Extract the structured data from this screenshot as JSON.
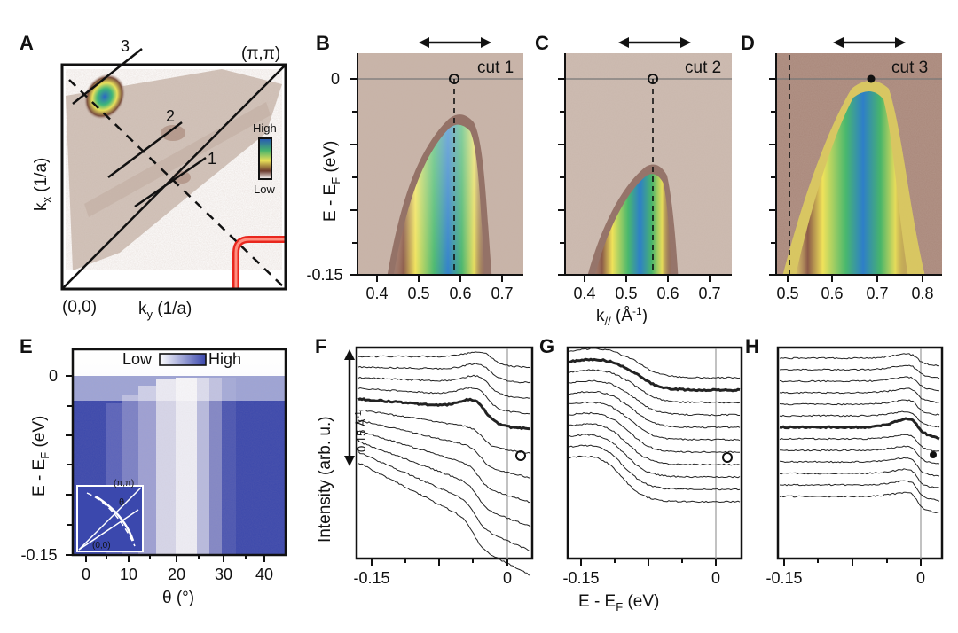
{
  "panels": {
    "A": {
      "letter": "A",
      "corner_top": "(π,π)",
      "corner_bottom": "(0,0)",
      "xlabel": "k",
      "xlabel_sub": "y",
      "xlabel_unit": " (1/a)",
      "ylabel": "k",
      "ylabel_sub": "x",
      "ylabel_unit": " (1/a)",
      "cut_labels": [
        "3",
        "2",
        "1"
      ],
      "colorbar_high": "High",
      "colorbar_low": "Low",
      "colors": {
        "fs_red": "#e8271e",
        "map_base": "#cdbdb3"
      }
    },
    "B": {
      "letter": "B",
      "cut": "cut 1",
      "xticks": [
        "0.4",
        "0.5",
        "0.6",
        "0.7"
      ],
      "marker": "open-circle"
    },
    "C": {
      "letter": "C",
      "cut": "cut 2",
      "xticks": [
        "0.4",
        "0.5",
        "0.6",
        "0.7"
      ],
      "marker": "open-circle"
    },
    "D": {
      "letter": "D",
      "cut": "cut 3",
      "xticks": [
        "0.5",
        "0.6",
        "0.7",
        "0.8"
      ],
      "marker": "filled-circle"
    },
    "BCD_shared": {
      "yticks": [
        "0",
        "-0.15"
      ],
      "ylabel_main": "E - E",
      "ylabel_sub": "F",
      "ylabel_unit": " (eV)",
      "xlabel_main": "k",
      "xlabel_sub": "//",
      "xlabel_unit_pre": " (Å",
      "xlabel_unit_sup": "-1",
      "xlabel_unit_post": ")"
    },
    "E": {
      "letter": "E",
      "legend_low": "Low",
      "legend_high": "High",
      "yticks": [
        "0",
        "-0.15"
      ],
      "ylabel_main": "E - E",
      "ylabel_sub": "F",
      "ylabel_unit": " (eV)",
      "xticks": [
        "0",
        "10",
        "20",
        "30",
        "40"
      ],
      "xlabel": "θ (°)",
      "inset_top": "(π,π)",
      "inset_bottom": "(0,0)",
      "inset_theta": "θ",
      "colors": {
        "deep": "#3b48ad",
        "light": "#f1f1f8"
      }
    },
    "F": {
      "letter": "F",
      "xticks": [
        "-0.15",
        "0"
      ],
      "marker": "open-circle",
      "scale_label": "0.15 Å",
      "scale_sup": "-1"
    },
    "G": {
      "letter": "G",
      "xticks": [
        "-0.15",
        "0"
      ],
      "marker": "open-circle"
    },
    "H": {
      "letter": "H",
      "xticks": [
        "-0.15",
        "0"
      ],
      "marker": "filled-circle"
    },
    "FGH_shared": {
      "ylabel": "Intensity (arb. u.)",
      "xlabel_main": "E - E",
      "xlabel_sub": "F",
      "xlabel_unit": " (eV)"
    }
  }
}
